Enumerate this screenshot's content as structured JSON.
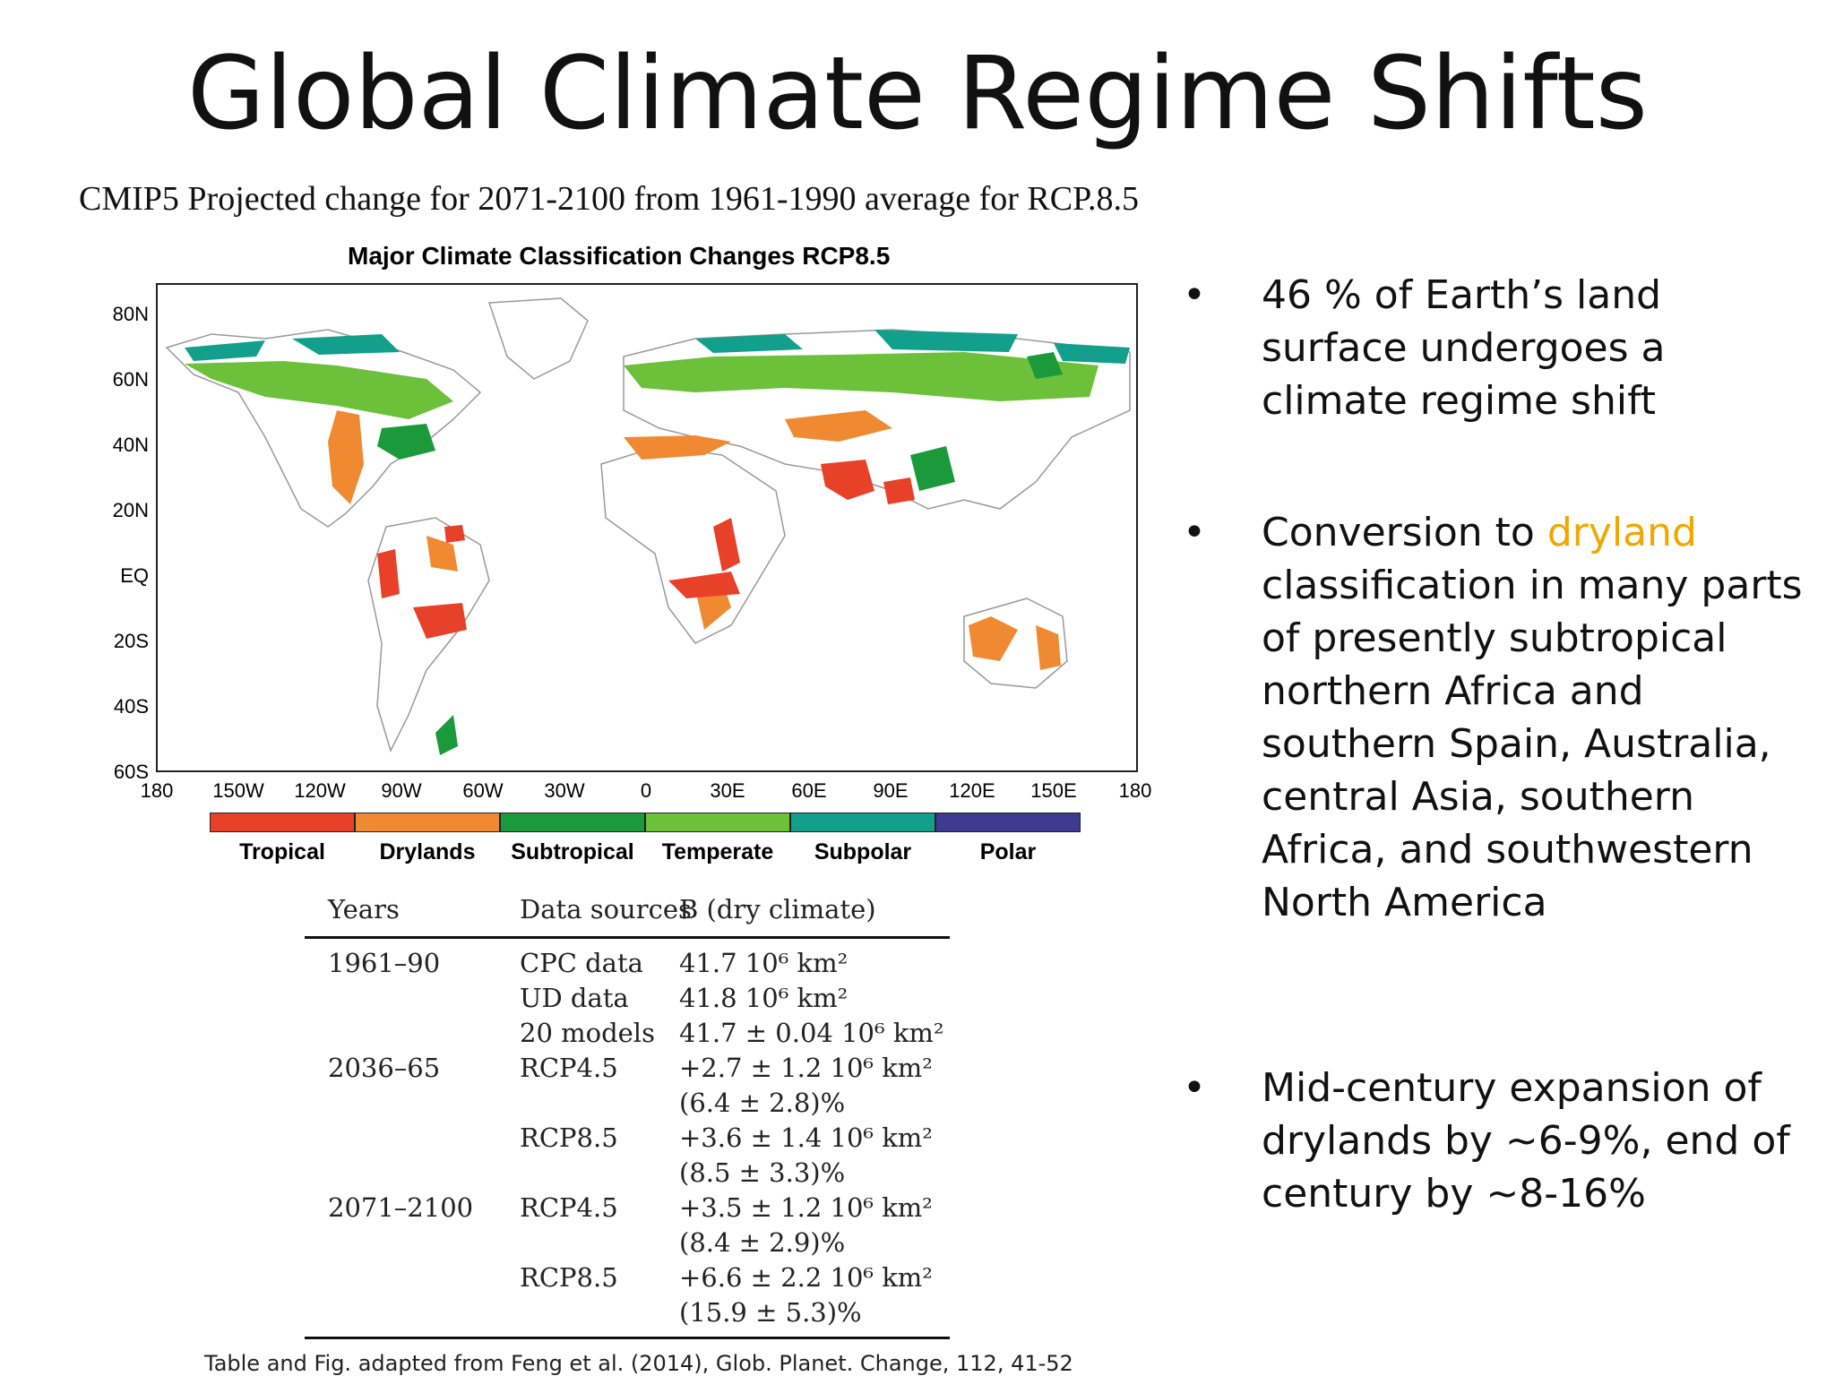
{
  "slide": {
    "title": "Global Climate Regime Shifts",
    "subtitle": "CMIP5 Projected change for 2071-2100 from 1961-1990 average for RCP.8.5",
    "footnote": "Table and Fig. adapted from Feng et al. (2014), Glob. Planet. Change, 112, 41-52"
  },
  "map": {
    "title": "Major Climate Classification Changes RCP8.5",
    "y_ticks": [
      "80N",
      "60N",
      "40N",
      "20N",
      "EQ",
      "20S",
      "40S",
      "60S"
    ],
    "x_ticks": [
      "180",
      "150W",
      "120W",
      "90W",
      "60W",
      "30W",
      "0",
      "30E",
      "60E",
      "90E",
      "120E",
      "150E",
      "180"
    ],
    "legend": [
      {
        "label": "Tropical",
        "color": "#e8412a"
      },
      {
        "label": "Drylands",
        "color": "#f08a32"
      },
      {
        "label": "Subtropical",
        "color": "#1a9a3a"
      },
      {
        "label": "Temperate",
        "color": "#6cc03a"
      },
      {
        "label": "Subpolar",
        "color": "#12a08c"
      },
      {
        "label": "Polar",
        "color": "#3e3a90"
      }
    ]
  },
  "table": {
    "headers": [
      "Years",
      "Data sources",
      "B (dry climate)"
    ],
    "rows": [
      {
        "years": "1961–90",
        "source": "CPC data",
        "value": "41.7  10⁶ km²"
      },
      {
        "years": "",
        "source": "UD data",
        "value": "41.8  10⁶ km²"
      },
      {
        "years": "",
        "source": "20 models",
        "value": "41.7 ± 0.04 10⁶ km²"
      },
      {
        "years": "2036–65",
        "source": "RCP4.5",
        "value": "+2.7 ± 1.2  10⁶ km²"
      },
      {
        "years": "",
        "source": "",
        "value": "(6.4 ± 2.8)%"
      },
      {
        "years": "",
        "source": "RCP8.5",
        "value": "+3.6 ± 1.4  10⁶ km²"
      },
      {
        "years": "",
        "source": "",
        "value": "(8.5 ± 3.3)%"
      },
      {
        "years": "2071–2100",
        "source": "RCP4.5",
        "value": "+3.5 ± 1.2  10⁶ km²"
      },
      {
        "years": "",
        "source": "",
        "value": "(8.4 ± 2.9)%"
      },
      {
        "years": "",
        "source": "RCP8.5",
        "value": "+6.6 ± 2.2  10⁶ km²"
      },
      {
        "years": "",
        "source": "",
        "value": "(15.9 ± 5.3)%"
      }
    ]
  },
  "bullets": {
    "b1": "46 % of Earth’s land surface undergoes a climate regime shift",
    "b2_pre": "Conversion to ",
    "b2_highlight": "dryland",
    "b2_post": " classification in many parts of presently subtropical northern Africa and southern Spain, Australia, central Asia, southern Africa, and southwestern North America",
    "b3": "Mid-century expansion of drylands by ~6-9%, end of century by ~8-16%",
    "marker": "•",
    "highlight_color": "#f0a800"
  }
}
